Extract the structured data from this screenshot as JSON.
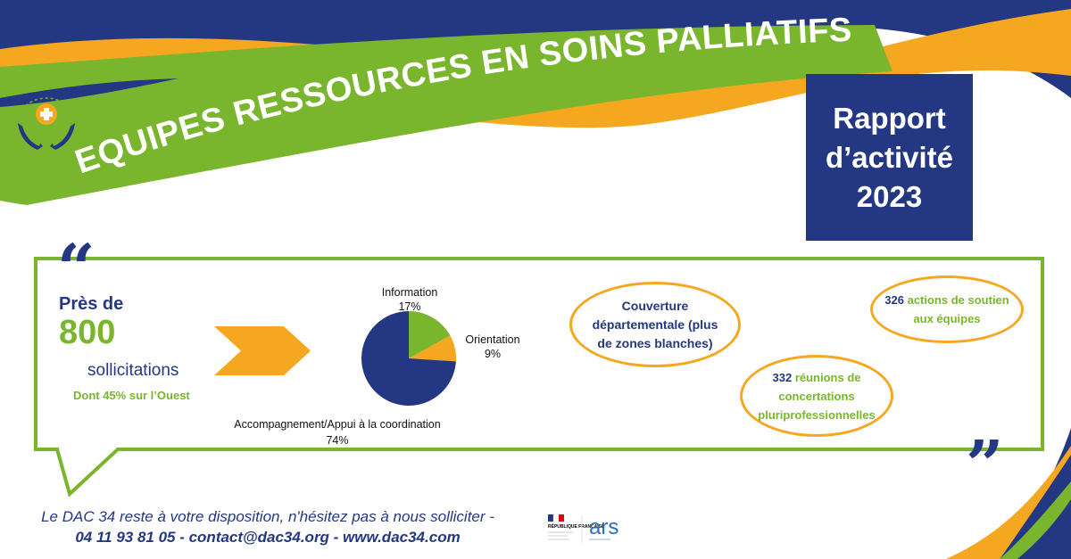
{
  "header": {
    "title": "EQUIPES RESSOURCES EN SOINS PALLIATIFS",
    "report_line1": "Rapport",
    "report_line2": "d’activité",
    "report_line3": "2023"
  },
  "kpi": {
    "intro": "Près de",
    "count": "800",
    "unit": "sollicitations",
    "detail": "Dont 45% sur l’Ouest"
  },
  "chart_data": {
    "type": "pie",
    "slices": [
      {
        "name": "Information",
        "label": "17%",
        "value": 17,
        "color": "#7ab52e"
      },
      {
        "name": "Orientation",
        "label": "9%",
        "value": 9,
        "color": "#f5a81f"
      },
      {
        "name": "Accompagnement/Appui à la coordination",
        "label": "74%",
        "value": 74,
        "color": "#243783"
      }
    ]
  },
  "bubbles": {
    "couverture": "Couverture départementale (plus de zones blanches)",
    "actions_num": "326",
    "actions_text": "actions de soutien aux équipes",
    "reunions_num": "332",
    "reunions_text": "réunions de concertations pluriprofessionnelles"
  },
  "footer": {
    "line1": "Le DAC 34 reste à votre disposition, n'hésitez pas à nous solliciter -",
    "line2": "04 11 93 81 05 - contact@dac34.org - www.dac34.com"
  },
  "logos": {
    "republique": "RÉPUBLIQUE FRANÇAISE",
    "ars": "ars"
  },
  "colors": {
    "navy": "#243783",
    "green": "#7ab52e",
    "orange": "#f5a81f"
  }
}
